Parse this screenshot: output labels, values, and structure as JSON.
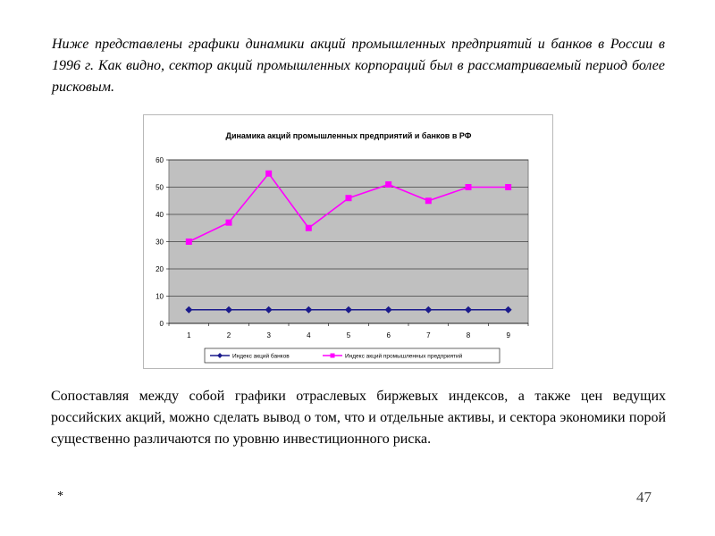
{
  "text": {
    "intro": "Ниже представлены графики динамики акций промышленных предприятий и банков в России в 1996 г. Как видно, сектор акций промышленных корпораций был в рассматриваемый период более рисковым.",
    "conclusion": "Сопоставляя между собой графики отраслевых биржевых индексов, а также цен ведущих российских акций, можно сделать вывод о том, что и отдельные активы, и сектора экономики порой существенно различаются по уровню инвестиционного риска.",
    "slide_marker": "*",
    "page_number": "47"
  },
  "chart_data": {
    "type": "line",
    "title": "Динамика акций промышленных предприятий и банков в РФ",
    "xlabel": "",
    "ylabel": "",
    "x": [
      1,
      2,
      3,
      4,
      5,
      6,
      7,
      8,
      9
    ],
    "ylim": [
      0,
      60
    ],
    "yticks": [
      0,
      10,
      20,
      30,
      40,
      50,
      60
    ],
    "grid": true,
    "legend_position": "bottom",
    "series": [
      {
        "name": "Индекс акций банков",
        "values": [
          5,
          5,
          5,
          5,
          5,
          5,
          5,
          5,
          5
        ],
        "color": "#1a1a8c",
        "marker": "diamond"
      },
      {
        "name": "Индекс акций промышленных предприятий",
        "values": [
          30,
          37,
          55,
          35,
          46,
          51,
          45,
          50,
          50
        ],
        "color": "#ff00ff",
        "marker": "square"
      }
    ],
    "plot_background": "#c0c0c0"
  }
}
